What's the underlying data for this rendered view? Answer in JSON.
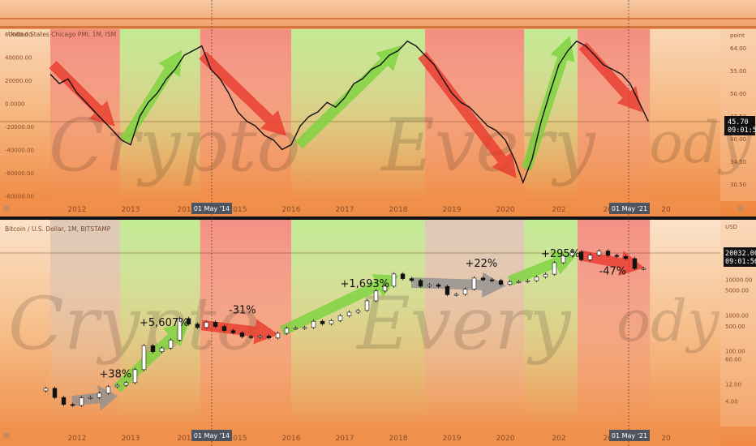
{
  "theme": {
    "accent_red": "#e8382b",
    "accent_green": "#78d33b",
    "accent_gray": "#8f8f8f",
    "background": "#f3a96b"
  },
  "chart_data": [
    {
      "type": "line",
      "title": "United States Chicago PMI, 1M, ISM",
      "ylabel": "point",
      "ylim": [
        -80000,
        80000
      ],
      "y_ticks": [
        "60000.00",
        "40000.00",
        "20000.00",
        "0.0000",
        "-20000.00",
        "-40000.00",
        "-60000.00",
        "-80000.00"
      ],
      "right_ticks": [
        "64.00",
        "55.00",
        "50.00",
        "47.50",
        "40.00",
        "34.50",
        "30.50"
      ],
      "x_ticks": [
        "2012",
        "2013",
        "2014",
        "2015",
        "2016",
        "2017",
        "2018",
        "2019",
        "2020",
        "2021",
        "2022",
        "2023"
      ],
      "x_tick_labels": [
        "2012",
        "2013",
        "201",
        "2015",
        "2016",
        "2017",
        "2018",
        "2019",
        "2020",
        "202",
        "2022",
        "20"
      ],
      "marker_labels": [
        "01 May '14",
        "01 May '21"
      ],
      "last_value": "45.70",
      "last_time": "09:01:56",
      "x": [
        2011.5,
        2011.67,
        2011.83,
        2012.0,
        2012.17,
        2012.33,
        2012.5,
        2012.67,
        2012.83,
        2013.0,
        2013.17,
        2013.33,
        2013.5,
        2013.67,
        2013.83,
        2014.0,
        2014.17,
        2014.33,
        2014.5,
        2014.67,
        2014.83,
        2015.0,
        2015.17,
        2015.33,
        2015.5,
        2015.67,
        2015.83,
        2016.0,
        2016.17,
        2016.33,
        2016.5,
        2016.67,
        2016.83,
        2017.0,
        2017.17,
        2017.33,
        2017.5,
        2017.67,
        2017.83,
        2018.0,
        2018.17,
        2018.33,
        2018.5,
        2018.67,
        2018.83,
        2019.0,
        2019.17,
        2019.33,
        2019.5,
        2019.67,
        2019.83,
        2020.0,
        2020.17,
        2020.33,
        2020.5,
        2020.67,
        2020.83,
        2021.0,
        2021.17,
        2021.33,
        2021.5,
        2021.67,
        2021.83,
        2022.0,
        2022.17,
        2022.33,
        2022.5,
        2022.67
      ],
      "values": [
        56,
        54,
        55,
        52,
        50,
        48,
        46,
        44,
        42,
        41,
        47,
        50,
        52,
        55,
        57,
        60,
        61,
        62,
        57,
        55,
        52,
        48,
        46,
        45,
        43,
        42,
        40,
        41,
        45,
        47,
        48,
        50,
        49,
        51,
        54,
        55,
        57,
        58,
        60,
        61,
        63,
        62,
        60,
        58,
        55,
        52,
        50,
        49,
        47,
        45,
        44,
        42,
        38,
        33,
        38,
        46,
        52,
        58,
        61,
        63,
        62,
        60,
        58,
        57,
        56,
        54,
        50,
        46
      ],
      "arrows": [
        {
          "from": [
            2011.55,
            58
          ],
          "to": [
            2012.7,
            45
          ],
          "color": "red"
        },
        {
          "from": [
            2012.9,
            42
          ],
          "to": [
            2013.95,
            61
          ],
          "color": "green"
        },
        {
          "from": [
            2014.35,
            60
          ],
          "to": [
            2015.9,
            43
          ],
          "color": "red"
        },
        {
          "from": [
            2016.15,
            41
          ],
          "to": [
            2018.05,
            62
          ],
          "color": "green"
        },
        {
          "from": [
            2018.45,
            60
          ],
          "to": [
            2020.2,
            34
          ],
          "color": "red"
        },
        {
          "from": [
            2020.4,
            36
          ],
          "to": [
            2021.2,
            64
          ],
          "color": "green"
        },
        {
          "from": [
            2021.45,
            62
          ],
          "to": [
            2022.55,
            48
          ],
          "color": "red"
        }
      ],
      "regions": [
        {
          "start": 2011.5,
          "end": 2012.8,
          "color": "red"
        },
        {
          "start": 2012.8,
          "end": 2014.3,
          "color": "green"
        },
        {
          "start": 2014.3,
          "end": 2016.0,
          "color": "red"
        },
        {
          "start": 2016.0,
          "end": 2018.5,
          "color": "green"
        },
        {
          "start": 2018.5,
          "end": 2020.35,
          "color": "red"
        },
        {
          "start": 2020.35,
          "end": 2021.35,
          "color": "green"
        },
        {
          "start": 2021.35,
          "end": 2022.7,
          "color": "red"
        }
      ]
    },
    {
      "type": "candlestick",
      "title": "Bitcoin / U.S. Dollar, 1M, BITSTAMP",
      "ylabel": "USD",
      "scale": "log",
      "y_ticks": [
        "30000.00",
        "10000.00",
        "5000.00",
        "1000.00",
        "500.00",
        "100.00",
        "60.00",
        "12.00",
        "4.00"
      ],
      "x_ticks": [
        "2012",
        "2013",
        "2014",
        "2015",
        "2016",
        "2017",
        "2018",
        "2019",
        "2020",
        "2021",
        "2022",
        "2023"
      ],
      "x_tick_labels": [
        "2012",
        "2013",
        "201",
        "2015",
        "2016",
        "2017",
        "2018",
        "2019",
        "2020",
        "202",
        "2022",
        "20"
      ],
      "marker_labels": [
        "01 May '14",
        "01 May '21"
      ],
      "last_value": "20032.00",
      "last_time": "09:01:56",
      "dates": [
        "2011-06",
        "2011-08",
        "2011-10",
        "2011-12",
        "2012-02",
        "2012-04",
        "2012-06",
        "2012-08",
        "2012-10",
        "2012-12",
        "2013-02",
        "2013-04",
        "2013-06",
        "2013-08",
        "2013-10",
        "2013-12",
        "2014-02",
        "2014-04",
        "2014-06",
        "2014-08",
        "2014-10",
        "2014-12",
        "2015-02",
        "2015-04",
        "2015-06",
        "2015-08",
        "2015-10",
        "2015-12",
        "2016-02",
        "2016-04",
        "2016-06",
        "2016-08",
        "2016-10",
        "2016-12",
        "2017-02",
        "2017-04",
        "2017-06",
        "2017-08",
        "2017-10",
        "2017-12",
        "2018-02",
        "2018-04",
        "2018-06",
        "2018-08",
        "2018-10",
        "2018-12",
        "2019-02",
        "2019-04",
        "2019-06",
        "2019-08",
        "2019-10",
        "2019-12",
        "2020-02",
        "2020-04",
        "2020-06",
        "2020-08",
        "2020-10",
        "2020-12",
        "2021-02",
        "2021-04",
        "2021-06",
        "2021-08",
        "2021-10",
        "2021-12",
        "2022-02",
        "2022-04",
        "2022-06",
        "2022-08"
      ],
      "close": [
        9,
        5,
        3.2,
        3,
        4.9,
        5,
        6.6,
        10,
        11,
        13,
        30,
        140,
        95,
        120,
        200,
        800,
        560,
        450,
        630,
        480,
        370,
        320,
        250,
        240,
        260,
        230,
        310,
        430,
        430,
        450,
        670,
        570,
        700,
        960,
        1200,
        1350,
        2500,
        4700,
        6400,
        14000,
        10400,
        9200,
        6400,
        7000,
        6300,
        3700,
        3800,
        5300,
        10800,
        9600,
        9200,
        7200,
        8500,
        8600,
        9100,
        11600,
        13800,
        28900,
        45000,
        57700,
        35000,
        47100,
        61300,
        46300,
        43200,
        37700,
        19900,
        20030
      ],
      "annotations": [
        {
          "text": "+38%",
          "x": "2012-06",
          "y": 18,
          "arrow": "gray"
        },
        {
          "text": "+5,607%",
          "x": "2013-03",
          "y": 500,
          "arrow": "green"
        },
        {
          "text": "-31%",
          "x": "2014-11",
          "y": 1100,
          "arrow": "red"
        },
        {
          "text": "+1,693%",
          "x": "2016-12",
          "y": 6000,
          "arrow": "green"
        },
        {
          "text": "+22%",
          "x": "2019-04",
          "y": 22000,
          "arrow": "gray"
        },
        {
          "text": "+295%",
          "x": "2020-09",
          "y": 42000,
          "arrow": "green"
        },
        {
          "text": "-47%",
          "x": "2021-10",
          "y": 13500,
          "arrow": "red"
        }
      ],
      "arrows": [
        {
          "from": [
            "2011-12",
            4
          ],
          "to": [
            "2012-10",
            5.5
          ],
          "color": "gray"
        },
        {
          "from": [
            "2012-10",
            9
          ],
          "to": [
            "2014-02",
            650
          ],
          "color": "green"
        },
        {
          "from": [
            "2014-05",
            520
          ],
          "to": [
            "2015-10",
            290
          ],
          "color": "red"
        },
        {
          "from": [
            "2015-11",
            360
          ],
          "to": [
            "2018-01",
            12500
          ],
          "color": "green"
        },
        {
          "from": [
            "2018-04",
            8000
          ],
          "to": [
            "2020-01",
            6600
          ],
          "color": "gray"
        },
        {
          "from": [
            "2020-02",
            9000
          ],
          "to": [
            "2021-05",
            50000
          ],
          "color": "green"
        },
        {
          "from": [
            "2021-06",
            46000
          ],
          "to": [
            "2022-08",
            21000
          ],
          "color": "red"
        }
      ],
      "regions": [
        {
          "start": 2011.5,
          "end": 2012.8,
          "color": "gray"
        },
        {
          "start": 2012.8,
          "end": 2014.3,
          "color": "green"
        },
        {
          "start": 2014.3,
          "end": 2016.0,
          "color": "red"
        },
        {
          "start": 2016.0,
          "end": 2018.5,
          "color": "green"
        },
        {
          "start": 2018.5,
          "end": 2020.35,
          "color": "gray"
        },
        {
          "start": 2020.35,
          "end": 2021.35,
          "color": "green"
        },
        {
          "start": 2021.35,
          "end": 2022.7,
          "color": "red"
        }
      ]
    }
  ]
}
